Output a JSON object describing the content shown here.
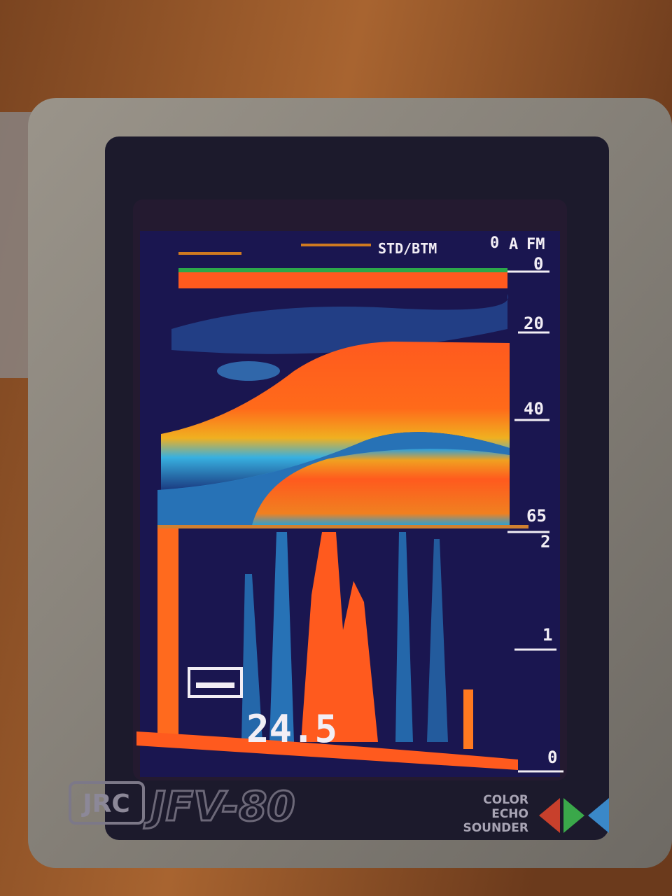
{
  "screen": {
    "header": {
      "mode": "STD/BTM",
      "shift": "0",
      "unit_mode": "A",
      "unit": "FM"
    },
    "depth_scale": [
      "0",
      "20",
      "40",
      "65"
    ],
    "zoom_scale": [
      "2",
      "1",
      "0"
    ],
    "readout": "24.5"
  },
  "bezel": {
    "maker": "JRC",
    "model": "JFV-80",
    "product": [
      "COLOR",
      "ECHO",
      "SOUNDER"
    ]
  }
}
